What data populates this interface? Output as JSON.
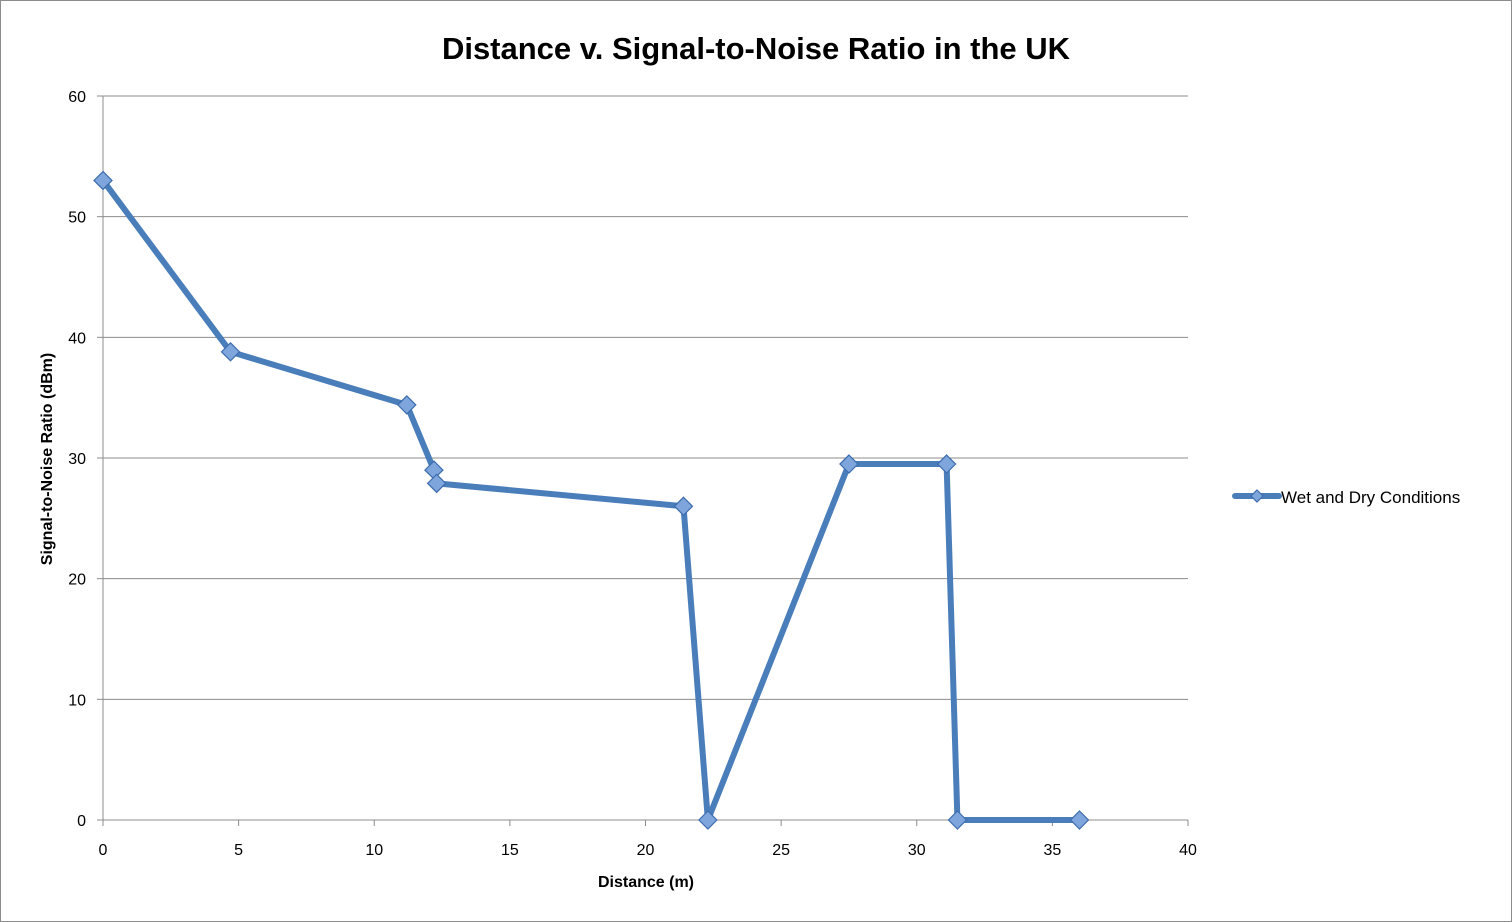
{
  "chart_data": {
    "type": "line",
    "title": "Distance v. Signal-to-Noise Ratio in the UK",
    "xlabel": "Distance (m)",
    "ylabel": "Signal-to-Noise Ratio (dBm)",
    "xlim": [
      0,
      40
    ],
    "ylim": [
      0,
      60
    ],
    "x_ticks": [
      0,
      5,
      10,
      15,
      20,
      25,
      30,
      35,
      40
    ],
    "y_ticks": [
      0,
      10,
      20,
      30,
      40,
      50,
      60
    ],
    "grid": "horizontal",
    "legend_position": "right",
    "series": [
      {
        "name": "Wet and Dry Conditions",
        "color": "#4a7ebb",
        "marker_color": "#7ea6dc",
        "marker": "diamond",
        "x": [
          0,
          4.7,
          11.2,
          12.2,
          12.3,
          21.4,
          22.3,
          27.5,
          31.1,
          31.5,
          36
        ],
        "y": [
          53,
          38.8,
          34.4,
          29,
          27.9,
          26,
          0,
          29.5,
          29.5,
          0,
          0
        ]
      }
    ]
  }
}
